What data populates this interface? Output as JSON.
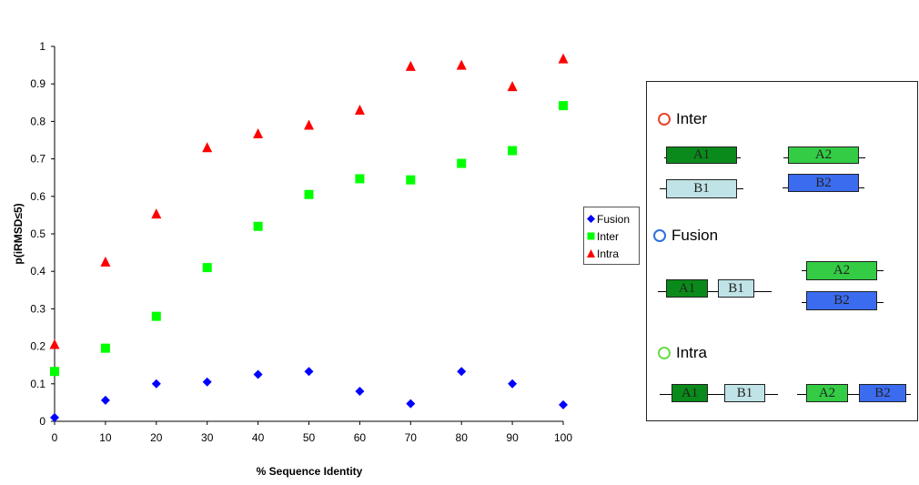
{
  "chart_data": {
    "type": "scatter",
    "xlabel": "% Sequence Identity",
    "ylabel": "p(iRMSD≤5)",
    "x": [
      0,
      10,
      20,
      30,
      40,
      50,
      60,
      70,
      80,
      90,
      100
    ],
    "xlim": [
      0,
      100
    ],
    "ylim": [
      0,
      1
    ],
    "xticks": [
      "0",
      "10",
      "20",
      "30",
      "40",
      "50",
      "60",
      "70",
      "80",
      "90",
      "100"
    ],
    "yticks": [
      "0",
      "0.1",
      "0.2",
      "0.3",
      "0.4",
      "0.5",
      "0.6",
      "0.7",
      "0.8",
      "0.9",
      "1"
    ],
    "grid": false,
    "legend_position": "right",
    "series": [
      {
        "name": "Fusion",
        "marker": "diamond",
        "color": "#0000ff",
        "values": [
          0.01,
          0.056,
          0.1,
          0.105,
          0.125,
          0.133,
          0.08,
          0.047,
          0.133,
          0.1,
          0.044
        ]
      },
      {
        "name": "Inter",
        "marker": "square",
        "color": "#00ff00",
        "values": [
          0.133,
          0.195,
          0.28,
          0.41,
          0.52,
          0.605,
          0.647,
          0.644,
          0.688,
          0.722,
          0.842
        ]
      },
      {
        "name": "Intra",
        "marker": "triangle",
        "color": "#ff0000",
        "values": [
          0.205,
          0.425,
          0.553,
          0.73,
          0.767,
          0.79,
          0.83,
          0.947,
          0.95,
          0.893,
          0.967
        ]
      }
    ]
  },
  "diagram": {
    "inter": {
      "title": "Inter",
      "circle_color": "#e8452c",
      "boxes": [
        "A1",
        "A2",
        "B1",
        "B2"
      ]
    },
    "fusion": {
      "title": "Fusion",
      "circle_color": "#2f6fe0",
      "boxes": [
        "A1",
        "B1",
        "A2",
        "B2"
      ]
    },
    "intra": {
      "title": "Intra",
      "circle_color": "#66dd44",
      "boxes": [
        "A1",
        "B1",
        "A2",
        "B2"
      ]
    },
    "colors": {
      "A1": "#0a8a1a",
      "A2": "#33cc44",
      "B1": "#bfe3e6",
      "B2": "#3b6cf0"
    }
  }
}
